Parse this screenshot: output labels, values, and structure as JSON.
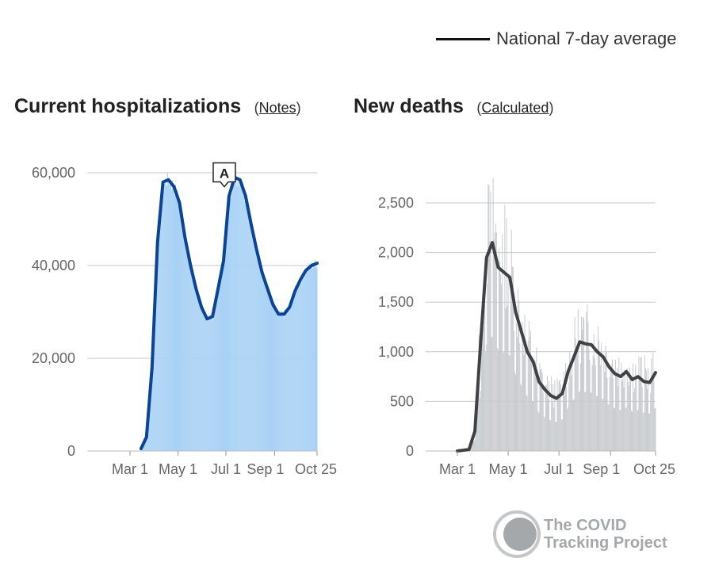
{
  "legend": {
    "label": "National 7-day average"
  },
  "titles": {
    "hospitalizations": "Current hospitalizations",
    "hospitalizations_note": "Notes",
    "deaths": "New deaths",
    "deaths_note": "Calculated"
  },
  "annotation": "A",
  "branding": {
    "line1": "The COVID",
    "line2": "Tracking Project",
    "logo": "ctp-circle-logo"
  },
  "colors": {
    "hosp_bars": "#a8d1f5",
    "hosp_line": "#0b4395",
    "deaths_bars": "#c6c9cc",
    "deaths_line": "#3f4244",
    "grid": "#c8c8c8",
    "axis_text": "#666666"
  },
  "chart_data": [
    {
      "type": "bar",
      "title": "Current hospitalizations",
      "x_tick_labels": [
        "Mar 1",
        "May 1",
        "Jul 1",
        "Sep 1",
        "Oct 25"
      ],
      "y_tick_labels": [
        "0",
        "20,000",
        "40,000",
        "60,000"
      ],
      "y_ticks": [
        0,
        20000,
        40000,
        60000
      ],
      "ylim": [
        0,
        60000
      ],
      "x_dates": [
        "2020-03-01",
        "2020-03-15",
        "2020-03-22",
        "2020-03-29",
        "2020-04-05",
        "2020-04-12",
        "2020-04-19",
        "2020-04-26",
        "2020-05-03",
        "2020-05-10",
        "2020-05-17",
        "2020-05-24",
        "2020-05-31",
        "2020-06-07",
        "2020-06-14",
        "2020-06-21",
        "2020-06-28",
        "2020-07-05",
        "2020-07-12",
        "2020-07-19",
        "2020-07-26",
        "2020-08-02",
        "2020-08-09",
        "2020-08-16",
        "2020-08-23",
        "2020-08-30",
        "2020-09-06",
        "2020-09-13",
        "2020-09-20",
        "2020-09-27",
        "2020-10-04",
        "2020-10-11",
        "2020-10-18",
        "2020-10-25"
      ],
      "series": [
        {
          "name": "National 7-day average",
          "values": [
            null,
            500,
            3000,
            18000,
            45000,
            58000,
            58500,
            57000,
            53500,
            46000,
            40000,
            35000,
            31000,
            28500,
            29000,
            35000,
            41000,
            55000,
            59000,
            58500,
            55000,
            49000,
            43500,
            38500,
            35000,
            31500,
            29500,
            29500,
            31000,
            34500,
            37000,
            39000,
            40000,
            40500
          ]
        }
      ],
      "annotations": [
        {
          "label": "A",
          "x": "2020-06-29",
          "y": 57000
        }
      ]
    },
    {
      "type": "bar",
      "title": "New deaths",
      "x_tick_labels": [
        "Mar 1",
        "May 1",
        "Jul 1",
        "Sep 1",
        "Oct 25"
      ],
      "y_tick_labels": [
        "0",
        "500",
        "1,000",
        "1,500",
        "2,000",
        "2,500"
      ],
      "y_ticks": [
        0,
        500,
        1000,
        1500,
        2000,
        2500
      ],
      "ylim": [
        0,
        2500
      ],
      "x_dates": [
        "2020-03-01",
        "2020-03-15",
        "2020-03-22",
        "2020-03-29",
        "2020-04-05",
        "2020-04-12",
        "2020-04-19",
        "2020-04-26",
        "2020-05-03",
        "2020-05-10",
        "2020-05-17",
        "2020-05-24",
        "2020-05-31",
        "2020-06-07",
        "2020-06-14",
        "2020-06-21",
        "2020-06-28",
        "2020-07-05",
        "2020-07-12",
        "2020-07-19",
        "2020-07-26",
        "2020-08-02",
        "2020-08-09",
        "2020-08-16",
        "2020-08-23",
        "2020-08-30",
        "2020-09-06",
        "2020-09-13",
        "2020-09-20",
        "2020-09-27",
        "2020-10-04",
        "2020-10-11",
        "2020-10-18",
        "2020-10-25"
      ],
      "series": [
        {
          "name": "National 7-day average",
          "values": [
            0,
            15,
            200,
            1100,
            1950,
            2100,
            1850,
            1800,
            1750,
            1400,
            1200,
            1000,
            900,
            700,
            620,
            560,
            530,
            580,
            800,
            950,
            1100,
            1080,
            1070,
            1000,
            950,
            850,
            780,
            750,
            800,
            720,
            750,
            700,
            690,
            790
          ]
        }
      ]
    }
  ]
}
